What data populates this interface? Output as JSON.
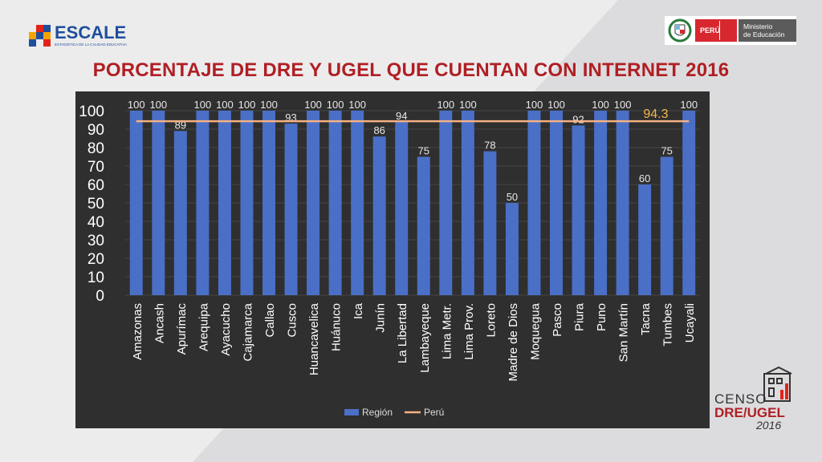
{
  "header": {
    "logo_text": "ESCALE",
    "logo_subtitle": "ESTADÍSTICA DE LA CALIDAD EDUCATIVA",
    "peru_label": "PERÚ",
    "ministry_line1": "Ministerio",
    "ministry_line2": "de Educación"
  },
  "footer": {
    "censo_line1": "CENSO",
    "censo_line2": "DRE/UGEL",
    "censo_year": "2016"
  },
  "colors": {
    "bar": "#4a6fc7",
    "line": "#f4b183",
    "title": "#b01f24",
    "panel": "#2f2f2f",
    "reference_label": "#f2b84b"
  },
  "chart_data": {
    "type": "bar",
    "title": "PORCENTAJE DE DRE Y UGEL QUE CUENTAN CON INTERNET 2016",
    "categories": [
      "Amazonas",
      "Ancash",
      "Apurímac",
      "Arequipa",
      "Ayacucho",
      "Cajamarca",
      "Callao",
      "Cusco",
      "Huancavelica",
      "Huánuco",
      "Ica",
      "Junín",
      "La Libertad",
      "Lambayeque",
      "Lima Metr.",
      "Lima Prov.",
      "Loreto",
      "Madre de Dios",
      "Moquegua",
      "Pasco",
      "Piura",
      "Puno",
      "San Martín",
      "Tacna",
      "Tumbes",
      "Ucayali"
    ],
    "series": [
      {
        "name": "Región",
        "type": "bar",
        "values": [
          100,
          100,
          89,
          100,
          100,
          100,
          100,
          93,
          100,
          100,
          100,
          86,
          94,
          75,
          100,
          100,
          78,
          50,
          100,
          100,
          92,
          100,
          100,
          60,
          75,
          100
        ]
      },
      {
        "name": "Perú",
        "type": "line",
        "value": 94.3,
        "label": "94.3"
      }
    ],
    "ylim": [
      0,
      100
    ],
    "yticks": [
      0,
      10,
      20,
      30,
      40,
      50,
      60,
      70,
      80,
      90,
      100
    ],
    "legend": "bottom",
    "grid": true
  }
}
